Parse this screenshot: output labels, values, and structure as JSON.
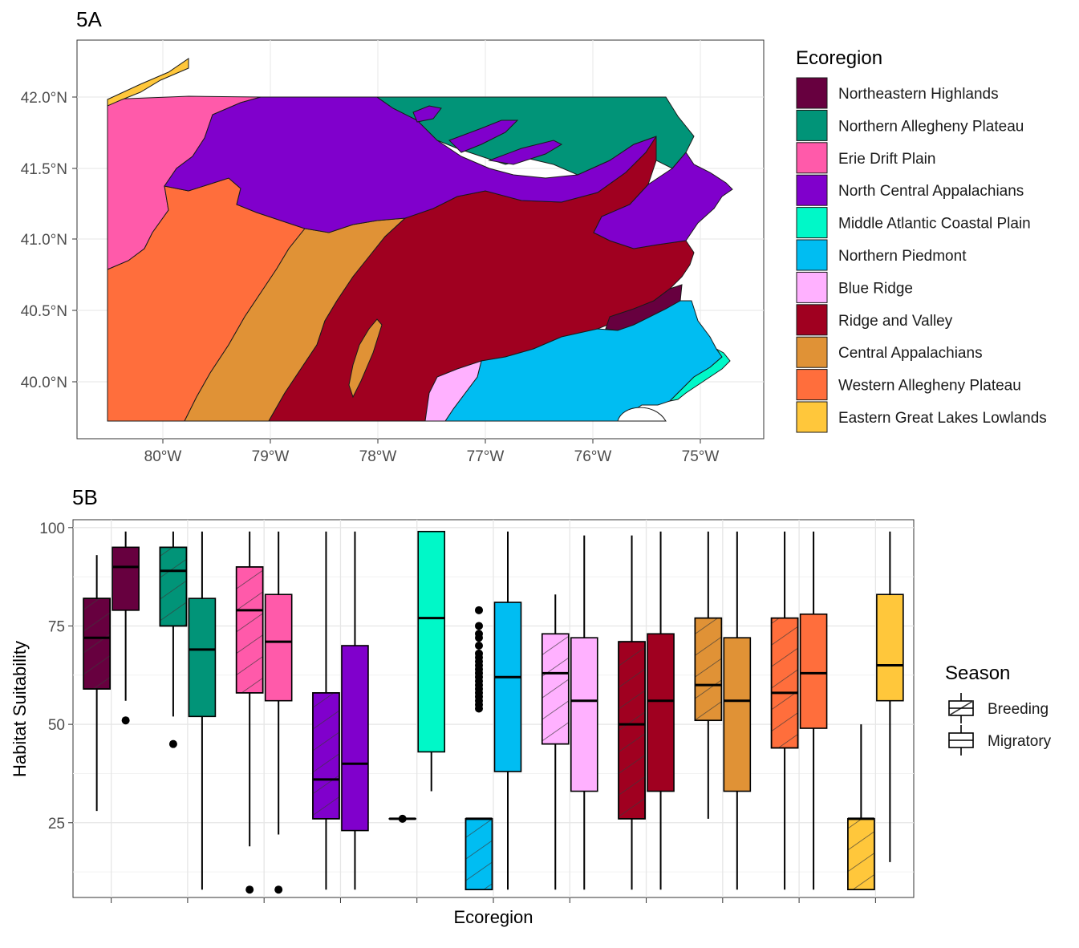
{
  "panels": {
    "map_label": "5A",
    "box_label": "5B"
  },
  "map": {
    "lat_ticks": [
      "42.0°N",
      "41.5°N",
      "41.0°N",
      "40.5°N",
      "40.0°N"
    ],
    "lon_ticks": [
      "80°W",
      "79°W",
      "78°W",
      "77°W",
      "76°W",
      "75°W"
    ],
    "legend_title": "Ecoregion"
  },
  "ecoregions": [
    {
      "name": "Northeastern Highlands",
      "color": "#67003f"
    },
    {
      "name": "Northern Allegheny Plateau",
      "color": "#019478"
    },
    {
      "name": "Erie Drift Plain",
      "color": "#ff5aaa"
    },
    {
      "name": "North Central Appalachians",
      "color": "#8000cc"
    },
    {
      "name": "Middle Atlantic Coastal Plain",
      "color": "#00f8c8"
    },
    {
      "name": "Northern Piedmont",
      "color": "#00bdf2"
    },
    {
      "name": "Blue Ridge",
      "color": "#ffb1ff"
    },
    {
      "name": "Ridge and Valley",
      "color": "#a00020"
    },
    {
      "name": "Central Appalachians",
      "color": "#e09236"
    },
    {
      "name": "Western Allegheny Plateau",
      "color": "#ff6e3c"
    },
    {
      "name": "Eastern Great Lakes Lowlands",
      "color": "#ffc73b"
    }
  ],
  "chart_data": {
    "type": "box",
    "title": "",
    "xlabel": "Ecoregion",
    "ylabel": "Habitat Suitability",
    "ylim": [
      6,
      102
    ],
    "yticks": [
      25,
      50,
      75,
      100
    ],
    "legend_title": "Season",
    "seasons": [
      "Breeding",
      "Migratory"
    ],
    "categories": [
      "Northeastern Highlands",
      "Northern Allegheny Plateau",
      "Erie Drift Plain",
      "North Central Appalachians",
      "Middle Atlantic Coastal Plain",
      "Northern Piedmont",
      "Blue Ridge",
      "Ridge and Valley",
      "Central Appalachians",
      "Western Allegheny Plateau",
      "Eastern Great Lakes Lowlands"
    ],
    "boxes": [
      {
        "category": "Northeastern Highlands",
        "season": "Breeding",
        "min": 28,
        "q1": 59,
        "median": 72,
        "q3": 82,
        "max": 93,
        "outliers": []
      },
      {
        "category": "Northeastern Highlands",
        "season": "Migratory",
        "min": 56,
        "q1": 79,
        "median": 90,
        "q3": 95,
        "max": 99,
        "outliers": [
          51
        ]
      },
      {
        "category": "Northern Allegheny Plateau",
        "season": "Breeding",
        "min": 52,
        "q1": 75,
        "median": 89,
        "q3": 95,
        "max": 99,
        "outliers": [
          45
        ]
      },
      {
        "category": "Northern Allegheny Plateau",
        "season": "Migratory",
        "min": 8,
        "q1": 52,
        "median": 69,
        "q3": 82,
        "max": 99,
        "outliers": []
      },
      {
        "category": "Erie Drift Plain",
        "season": "Breeding",
        "min": 19,
        "q1": 58,
        "median": 79,
        "q3": 90,
        "max": 99,
        "outliers": [
          8
        ]
      },
      {
        "category": "Erie Drift Plain",
        "season": "Migratory",
        "min": 22,
        "q1": 56,
        "median": 71,
        "q3": 83,
        "max": 99,
        "outliers": [
          8
        ]
      },
      {
        "category": "North Central Appalachians",
        "season": "Breeding",
        "min": 8,
        "q1": 26,
        "median": 36,
        "q3": 58,
        "max": 99,
        "outliers": []
      },
      {
        "category": "North Central Appalachians",
        "season": "Migratory",
        "min": 8,
        "q1": 23,
        "median": 40,
        "q3": 70,
        "max": 99,
        "outliers": []
      },
      {
        "category": "Middle Atlantic Coastal Plain",
        "season": "Breeding",
        "min": 26,
        "q1": 26,
        "median": 26,
        "q3": 26,
        "max": 26,
        "outliers": [
          26
        ]
      },
      {
        "category": "Middle Atlantic Coastal Plain",
        "season": "Migratory",
        "min": 33,
        "q1": 43,
        "median": 77,
        "q3": 99,
        "max": 99,
        "outliers": []
      },
      {
        "category": "Northern Piedmont",
        "season": "Breeding",
        "min": 8,
        "q1": 8,
        "median": 26,
        "q3": 26,
        "max": 26,
        "outliers": [
          54,
          55,
          56,
          57,
          58,
          59,
          60,
          61,
          62,
          63,
          64,
          65,
          66,
          67,
          68,
          70,
          72,
          73,
          75,
          79
        ]
      },
      {
        "category": "Northern Piedmont",
        "season": "Migratory",
        "min": 8,
        "q1": 38,
        "median": 62,
        "q3": 81,
        "max": 99,
        "outliers": []
      },
      {
        "category": "Blue Ridge",
        "season": "Breeding",
        "min": 8,
        "q1": 45,
        "median": 63,
        "q3": 73,
        "max": 83,
        "outliers": []
      },
      {
        "category": "Blue Ridge",
        "season": "Migratory",
        "min": 8,
        "q1": 33,
        "median": 56,
        "q3": 72,
        "max": 98,
        "outliers": []
      },
      {
        "category": "Ridge and Valley",
        "season": "Breeding",
        "min": 8,
        "q1": 26,
        "median": 50,
        "q3": 71,
        "max": 98,
        "outliers": []
      },
      {
        "category": "Ridge and Valley",
        "season": "Migratory",
        "min": 8,
        "q1": 33,
        "median": 56,
        "q3": 73,
        "max": 99,
        "outliers": []
      },
      {
        "category": "Central Appalachians",
        "season": "Breeding",
        "min": 26,
        "q1": 51,
        "median": 60,
        "q3": 77,
        "max": 99,
        "outliers": []
      },
      {
        "category": "Central Appalachians",
        "season": "Migratory",
        "min": 8,
        "q1": 33,
        "median": 56,
        "q3": 72,
        "max": 99,
        "outliers": []
      },
      {
        "category": "Western Allegheny Plateau",
        "season": "Breeding",
        "min": 8,
        "q1": 44,
        "median": 58,
        "q3": 77,
        "max": 99,
        "outliers": []
      },
      {
        "category": "Western Allegheny Plateau",
        "season": "Migratory",
        "min": 8,
        "q1": 49,
        "median": 63,
        "q3": 78,
        "max": 99,
        "outliers": []
      },
      {
        "category": "Eastern Great Lakes Lowlands",
        "season": "Breeding",
        "min": 8,
        "q1": 8,
        "median": 26,
        "q3": 26,
        "max": 50,
        "outliers": []
      },
      {
        "category": "Eastern Great Lakes Lowlands",
        "season": "Migratory",
        "min": 15,
        "q1": 56,
        "median": 65,
        "q3": 83,
        "max": 99,
        "outliers": []
      }
    ]
  }
}
